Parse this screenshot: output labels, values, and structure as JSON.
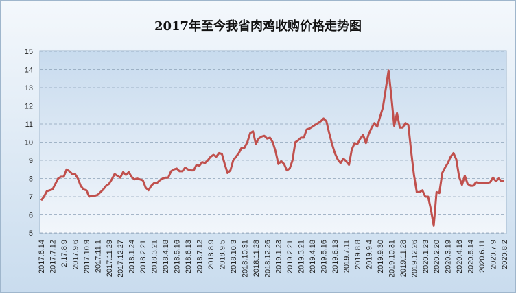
{
  "chart_data": {
    "type": "line",
    "title": "2017年至今我省肉鸡收购价格走势图",
    "categories": [
      "2017.6.14",
      null,
      null,
      null,
      "2017.7.12",
      null,
      null,
      null,
      "2.17.8.9",
      null,
      null,
      null,
      "2017.9.6",
      null,
      null,
      null,
      "2017.10.9",
      null,
      null,
      null,
      "2017.11.1",
      null,
      null,
      null,
      "2017.11.29",
      null,
      null,
      null,
      "2017.12.27",
      null,
      null,
      null,
      "2018.1.24",
      null,
      null,
      null,
      "2018.2.21",
      null,
      null,
      null,
      "2018.3.21",
      null,
      null,
      null,
      "2018.4.18",
      null,
      null,
      null,
      "2018.5.16",
      null,
      null,
      null,
      "2018.6.13",
      null,
      null,
      null,
      "2018.7.12",
      null,
      null,
      null,
      "2018.8.9",
      null,
      null,
      null,
      "2018.9.5",
      null,
      null,
      null,
      "2018.10.3",
      null,
      null,
      null,
      "2018.10.31",
      null,
      null,
      null,
      "2018.11.28",
      null,
      null,
      null,
      "2018.12.26",
      null,
      null,
      null,
      "2019.1.23",
      null,
      null,
      null,
      "2019.2.21",
      null,
      null,
      null,
      "2019.3.21",
      null,
      null,
      null,
      "2019.4.18",
      null,
      null,
      null,
      "2019.5.16",
      null,
      null,
      null,
      "2019.6.13",
      null,
      null,
      null,
      "2019.7.11",
      null,
      null,
      null,
      "2019.8.8",
      null,
      null,
      null,
      "2019.9.4",
      null,
      null,
      null,
      "2019.9.30",
      null,
      null,
      null,
      "2019.10.31",
      null,
      null,
      null,
      "2019.11.28",
      null,
      null,
      null,
      "2019.12.26",
      null,
      null,
      null,
      "2020.1.23",
      null,
      null,
      null,
      "2020.2.20",
      null,
      null,
      null,
      "2020.3.19",
      null,
      null,
      null,
      "2020.4.16",
      null,
      null,
      null,
      "2020.5.14",
      null,
      null,
      null,
      "2020.6.11",
      null,
      null,
      null,
      "2020.7.9",
      null,
      null,
      null,
      "2020.8.2"
    ],
    "values": [
      6.8,
      7.0,
      7.3,
      7.35,
      7.4,
      7.7,
      8.0,
      8.1,
      8.1,
      8.5,
      8.4,
      8.25,
      8.25,
      8.0,
      7.6,
      7.4,
      7.35,
      7.0,
      7.05,
      7.05,
      7.1,
      7.25,
      7.4,
      7.6,
      7.7,
      7.95,
      8.25,
      8.15,
      8.05,
      8.35,
      8.2,
      8.35,
      8.1,
      7.95,
      8.0,
      7.95,
      7.9,
      7.5,
      7.35,
      7.6,
      7.75,
      7.75,
      7.9,
      8.0,
      8.05,
      8.05,
      8.4,
      8.5,
      8.55,
      8.4,
      8.4,
      8.6,
      8.5,
      8.45,
      8.45,
      8.75,
      8.7,
      8.9,
      8.85,
      9.0,
      9.2,
      9.3,
      9.2,
      9.4,
      9.35,
      8.8,
      8.3,
      8.45,
      9.0,
      9.2,
      9.4,
      9.7,
      9.7,
      10.0,
      10.5,
      10.6,
      9.9,
      10.2,
      10.3,
      10.35,
      10.2,
      10.25,
      10.0,
      9.5,
      8.8,
      8.95,
      8.8,
      8.45,
      8.55,
      9.0,
      10.0,
      10.1,
      10.25,
      10.25,
      10.7,
      10.75,
      10.85,
      10.95,
      11.05,
      11.15,
      11.3,
      11.15,
      10.5,
      9.9,
      9.4,
      9.05,
      8.85,
      9.1,
      8.95,
      8.75,
      9.6,
      9.95,
      9.9,
      10.2,
      10.4,
      9.95,
      10.45,
      10.8,
      11.05,
      10.85,
      11.4,
      11.9,
      12.9,
      13.95,
      12.5,
      10.9,
      11.6,
      10.8,
      10.8,
      11.05,
      10.95,
      9.5,
      8.2,
      7.25,
      7.25,
      7.35,
      7.0,
      7.0,
      6.3,
      5.4,
      7.25,
      7.2,
      8.3,
      8.6,
      8.85,
      9.2,
      9.4,
      9.05,
      8.1,
      7.65,
      8.15,
      7.7,
      7.6,
      7.6,
      7.8,
      7.75,
      7.75,
      7.75,
      7.75,
      7.8,
      8.05,
      7.85,
      8.0,
      7.85,
      7.85
    ],
    "color": "#c0504d",
    "ylim": [
      5,
      15
    ],
    "yticks": [
      5,
      6,
      7,
      8,
      9,
      10,
      11,
      12,
      13,
      14,
      15
    ],
    "grid": true
  }
}
